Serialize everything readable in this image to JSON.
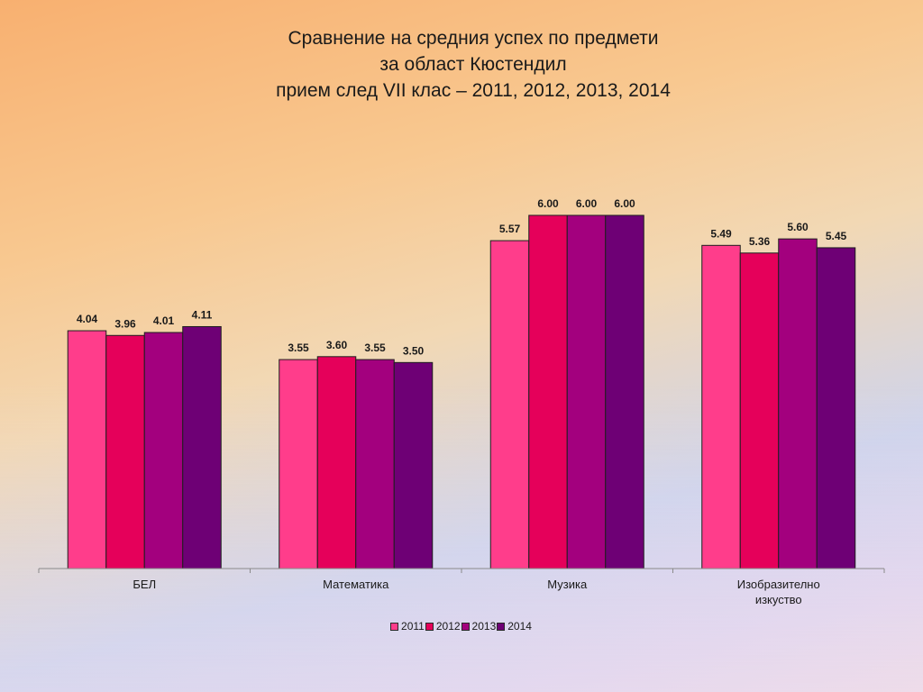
{
  "chart_data": {
    "type": "bar",
    "title_lines": [
      "Сравнение на средния успех по предмети",
      "за област Кюстендил",
      "прием след VII клас – 2011, 2012, 2013, 2014"
    ],
    "categories": [
      [
        "БЕЛ"
      ],
      [
        "Математика"
      ],
      [
        "Музика"
      ],
      [
        "Изобразително",
        "изкуство"
      ]
    ],
    "series": [
      {
        "name": "2011",
        "color": "#ff3d8b",
        "values": [
          4.04,
          3.55,
          5.57,
          5.49
        ],
        "labels": [
          "4.04",
          "3.55",
          "5.57",
          "5.49"
        ]
      },
      {
        "name": "2012",
        "color": "#e5005a",
        "values": [
          3.96,
          3.6,
          6.0,
          5.36
        ],
        "labels": [
          "3.96",
          "3.60",
          "6.00",
          "5.36"
        ]
      },
      {
        "name": "2013",
        "color": "#a3007e",
        "values": [
          4.01,
          3.55,
          6.0,
          5.6
        ],
        "labels": [
          "4.01",
          "3.55",
          "6.00",
          "5.60"
        ]
      },
      {
        "name": "2014",
        "color": "#6e0075",
        "values": [
          4.11,
          3.5,
          6.0,
          5.45
        ],
        "labels": [
          "4.11",
          "3.50",
          "6.00",
          "5.45"
        ]
      }
    ],
    "ylim": [
      0,
      7.1
    ],
    "grid": false,
    "legend_position": "bottom"
  }
}
